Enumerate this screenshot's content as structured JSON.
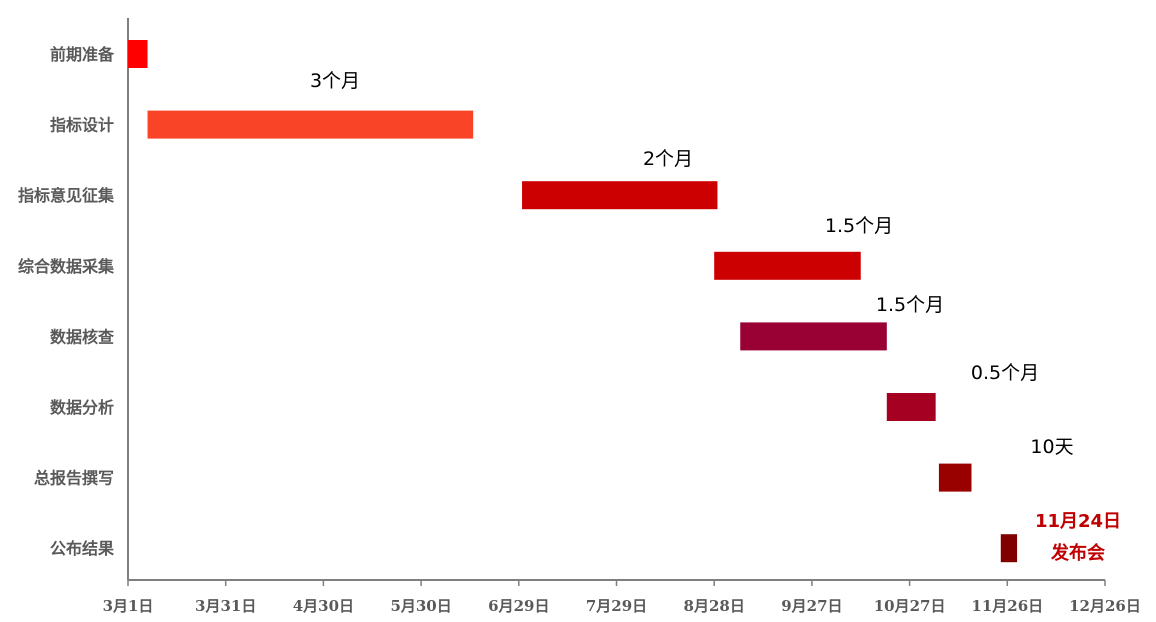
{
  "chart_data": {
    "type": "bar",
    "subtype": "gantt",
    "title": "",
    "xlabel": "",
    "ylabel": "",
    "x_ticks": [
      "3月1日",
      "3月31日",
      "4月30日",
      "5月30日",
      "6月29日",
      "7月29日",
      "8月28日",
      "9月27日",
      "10月27日",
      "11月26日",
      "12月26日"
    ],
    "xlim": [
      "3/1",
      "12/26"
    ],
    "grid": false,
    "tasks": [
      {
        "name": "前期准备",
        "start": "3/1",
        "end": "3/7",
        "color": "#FF0000",
        "label": ""
      },
      {
        "name": "指标设计",
        "start": "3/7",
        "end": "6/15",
        "color": "#F94427",
        "label": "3个月"
      },
      {
        "name": "指标意见征集",
        "start": "6/30",
        "end": "8/29",
        "color": "#CC0000",
        "label": "2个月"
      },
      {
        "name": "综合数据采集",
        "start": "8/28",
        "end": "10/12",
        "color": "#CC0000",
        "label": "1.5个月"
      },
      {
        "name": "数据核查",
        "start": "9/5",
        "end": "10/20",
        "color": "#990033",
        "label": "1.5个月"
      },
      {
        "name": "数据分析",
        "start": "10/20",
        "end": "11/4",
        "color": "#A50021",
        "label": "0.5个月"
      },
      {
        "name": "总报告撰写",
        "start": "11/5",
        "end": "11/15",
        "color": "#990000",
        "label": "10天"
      },
      {
        "name": "公布结果",
        "start": "11/24",
        "end": "11/29",
        "color": "#800000",
        "label": ""
      }
    ],
    "annotation": {
      "lines": [
        "11月24日",
        "发布会"
      ],
      "color": "#C00000"
    }
  }
}
